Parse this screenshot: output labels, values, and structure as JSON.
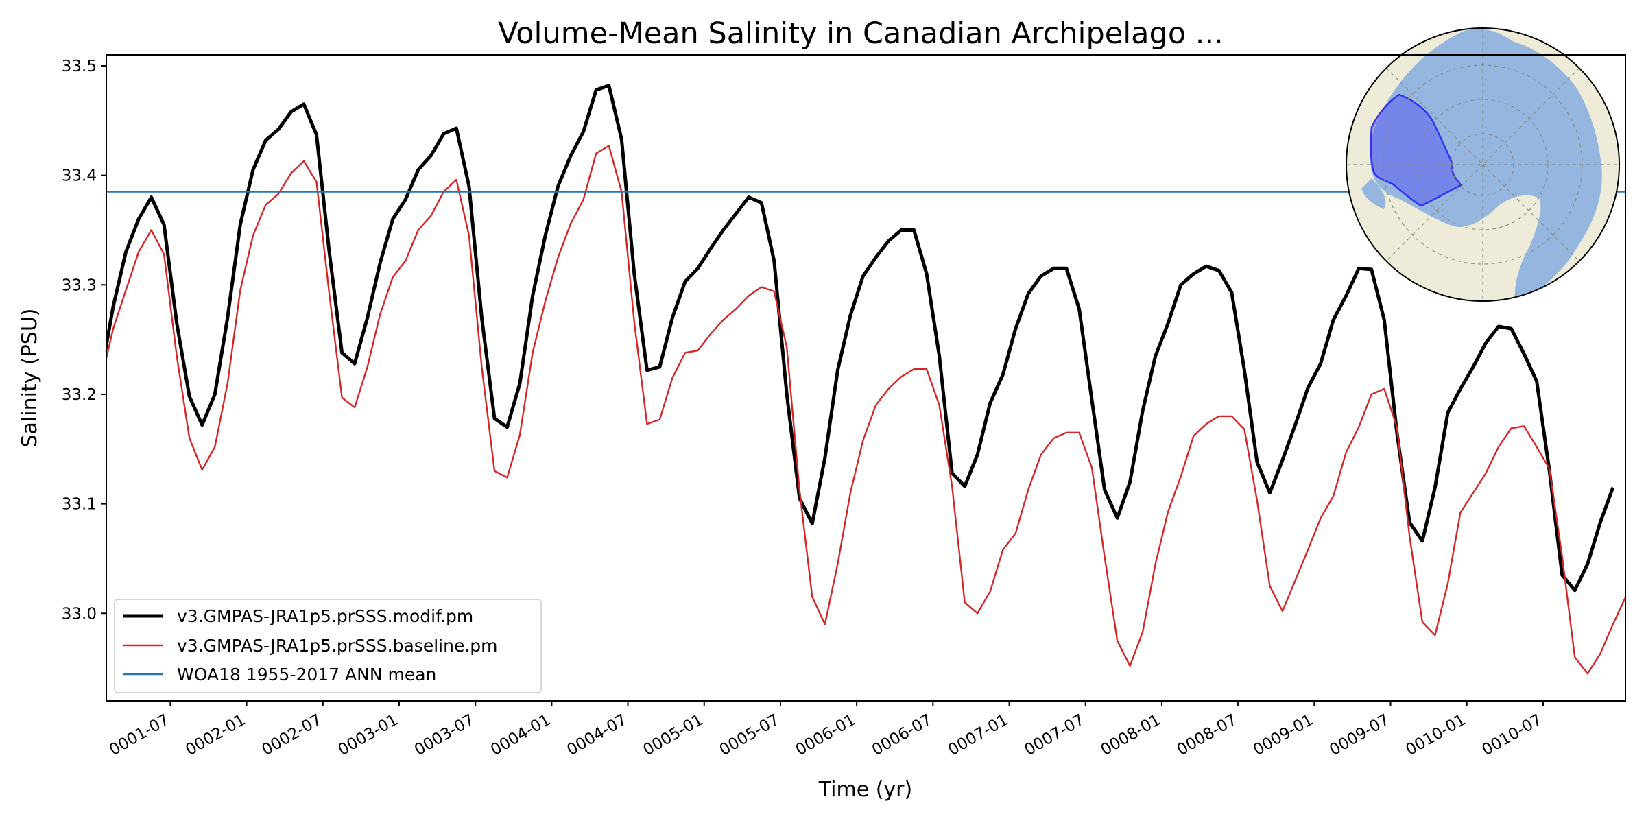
{
  "chart_data": {
    "type": "line",
    "title": "Volume-Mean Salinity in Canadian Archipelago ...",
    "xlabel": "Time (yr)",
    "ylabel": "Salinity (PSU)",
    "xlim": [
      0.08,
      10.04
    ],
    "ylim": [
      32.92,
      33.51
    ],
    "grid": false,
    "legend_position": "lower-left",
    "y_ticks": [
      33.0,
      33.1,
      33.2,
      33.3,
      33.4,
      33.5
    ],
    "y_tick_labels": [
      "33.0",
      "33.1",
      "33.2",
      "33.3",
      "33.4",
      "33.5"
    ],
    "x_ticks": [
      0.5,
      1.0,
      1.5,
      2.0,
      2.5,
      3.0,
      3.5,
      4.0,
      4.5,
      5.0,
      5.5,
      6.0,
      6.5,
      7.0,
      7.5,
      8.0,
      8.5,
      9.0,
      9.5
    ],
    "x_tick_labels": [
      "0001-07",
      "0002-01",
      "0002-07",
      "0003-01",
      "0003-07",
      "0004-01",
      "0004-07",
      "0005-01",
      "0005-07",
      "0006-01",
      "0006-07",
      "0007-01",
      "0007-07",
      "0008-01",
      "0008-07",
      "0009-01",
      "0009-07",
      "0010-01",
      "0010-07"
    ],
    "x_units": "years (monthly samples)",
    "series": [
      {
        "name": "v3.GMPAS-JRA1p5.prSSS.modif.pm",
        "color": "#000000",
        "style": "thick",
        "values": [
          33.215,
          33.28,
          33.33,
          33.36,
          33.38,
          33.355,
          33.265,
          33.198,
          33.172,
          33.2,
          33.27,
          33.355,
          33.405,
          33.432,
          33.442,
          33.458,
          33.465,
          33.437,
          33.33,
          33.238,
          33.228,
          33.27,
          33.32,
          33.36,
          33.378,
          33.405,
          33.418,
          33.438,
          33.443,
          33.39,
          33.27,
          33.178,
          33.17,
          33.21,
          33.29,
          33.345,
          33.39,
          33.418,
          33.44,
          33.478,
          33.482,
          33.433,
          33.31,
          33.222,
          33.225,
          33.27,
          33.303,
          33.315,
          33.333,
          33.35,
          33.365,
          33.38,
          33.375,
          33.322,
          33.2,
          33.105,
          33.082,
          33.142,
          33.222,
          33.272,
          33.308,
          33.325,
          33.34,
          33.35,
          33.35,
          33.31,
          33.235,
          33.128,
          33.116,
          33.145,
          33.192,
          33.218,
          33.26,
          33.292,
          33.308,
          33.315,
          33.315,
          33.278,
          33.195,
          33.113,
          33.087,
          33.12,
          33.185,
          33.235,
          33.265,
          33.3,
          33.31,
          33.317,
          33.313,
          33.293,
          33.222,
          33.138,
          33.11,
          33.14,
          33.172,
          33.206,
          33.228,
          33.268,
          33.29,
          33.315,
          33.314,
          33.268,
          33.165,
          33.083,
          33.066,
          33.115,
          33.183,
          33.205,
          33.225,
          33.247,
          33.262,
          33.26,
          33.237,
          33.212,
          33.13,
          33.035,
          33.021,
          33.045,
          33.083,
          33.115
        ]
      },
      {
        "name": "v3.GMPAS-JRA1p5.prSSS.baseline.pm",
        "color": "#d62728",
        "style": "thin",
        "values": [
          33.21,
          33.26,
          33.295,
          33.33,
          33.35,
          33.328,
          33.235,
          33.16,
          33.131,
          33.152,
          33.21,
          33.295,
          33.345,
          33.373,
          33.383,
          33.402,
          33.413,
          33.394,
          33.292,
          33.197,
          33.188,
          33.225,
          33.273,
          33.307,
          33.322,
          33.35,
          33.363,
          33.385,
          33.396,
          33.345,
          33.225,
          33.13,
          33.124,
          33.163,
          33.238,
          33.285,
          33.325,
          33.356,
          33.378,
          33.42,
          33.427,
          33.385,
          33.266,
          33.173,
          33.177,
          33.215,
          33.238,
          33.24,
          33.255,
          33.268,
          33.278,
          33.29,
          33.298,
          33.294,
          33.243,
          33.112,
          33.015,
          32.99,
          33.045,
          33.11,
          33.158,
          33.19,
          33.205,
          33.216,
          33.223,
          33.223,
          33.19,
          33.116,
          33.01,
          33.0,
          33.02,
          33.058,
          33.073,
          33.113,
          33.145,
          33.16,
          33.165,
          33.165,
          33.133,
          33.052,
          32.975,
          32.952,
          32.983,
          33.045,
          33.093,
          33.125,
          33.162,
          33.173,
          33.18,
          33.18,
          33.168,
          33.103,
          33.025,
          33.002,
          33.03,
          33.058,
          33.087,
          33.107,
          33.147,
          33.17,
          33.2,
          33.205,
          33.17,
          33.07,
          32.992,
          32.98,
          33.027,
          33.092,
          33.11,
          33.128,
          33.152,
          33.169,
          33.171,
          33.152,
          33.132,
          33.052,
          32.96,
          32.945,
          32.963,
          32.99,
          33.015
        ]
      },
      {
        "name": "WOA18 1955-2017 ANN mean",
        "color": "#1f77b4",
        "style": "reference",
        "value": 33.385
      }
    ]
  },
  "inset_map": {
    "description_label": "Canadian Archipelago region",
    "land_color": "#eeecd8",
    "ocean_color": "#95b6df",
    "region_color": "#5b5cf0"
  }
}
